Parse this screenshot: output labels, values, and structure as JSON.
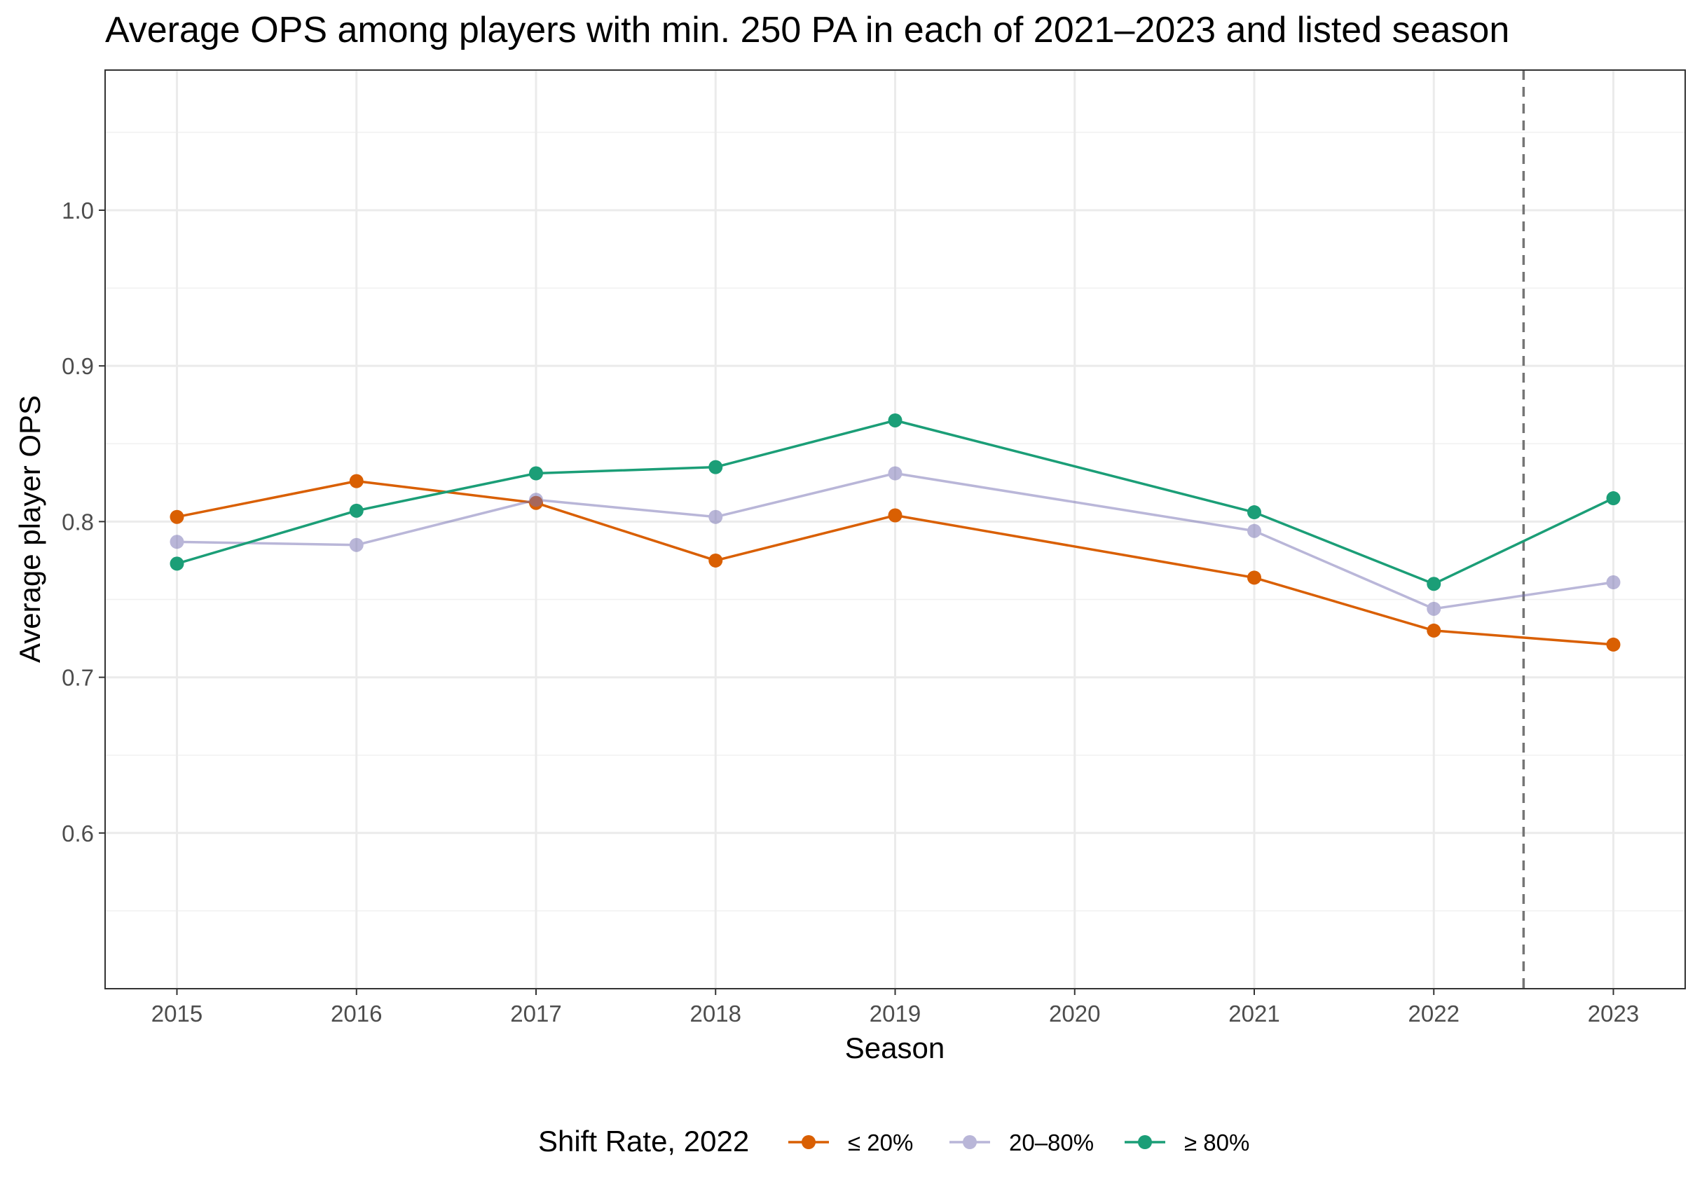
{
  "chart_data": {
    "type": "line",
    "title": "Average OPS among players with min. 250 PA in each of 2021–2023 and listed season",
    "xlabel": "Season",
    "ylabel": "Average player OPS",
    "x": [
      2015,
      2016,
      2017,
      2018,
      2019,
      2021,
      2022,
      2023
    ],
    "x_ticks": [
      "2015",
      "2016",
      "2017",
      "2018",
      "2019",
      "2020",
      "2021",
      "2022",
      "2023"
    ],
    "y_ticks": [
      "0.6",
      "0.7",
      "0.8",
      "0.9",
      "1.0"
    ],
    "xlim": [
      2014.6,
      2023.4
    ],
    "ylim": [
      0.5,
      1.09
    ],
    "grid": true,
    "reference_line": {
      "x": 2022.5,
      "style": "dashed",
      "color": "#757575"
    },
    "legend": {
      "title": "Shift Rate, 2022",
      "position": "bottom"
    },
    "series": [
      {
        "name": "≤ 20%",
        "color": "#d95f02",
        "opacity": 1,
        "values": [
          0.803,
          0.826,
          0.812,
          0.775,
          0.804,
          0.764,
          0.73,
          0.721
        ]
      },
      {
        "name": "20–80%",
        "color": "#7570b3",
        "opacity": 0.5,
        "values": [
          0.787,
          0.785,
          0.814,
          0.803,
          0.831,
          0.794,
          0.744,
          0.761
        ]
      },
      {
        "name": "≥ 80%",
        "color": "#1b9e77",
        "opacity": 1,
        "values": [
          0.773,
          0.807,
          0.831,
          0.835,
          0.865,
          0.806,
          0.76,
          0.815
        ]
      }
    ]
  }
}
